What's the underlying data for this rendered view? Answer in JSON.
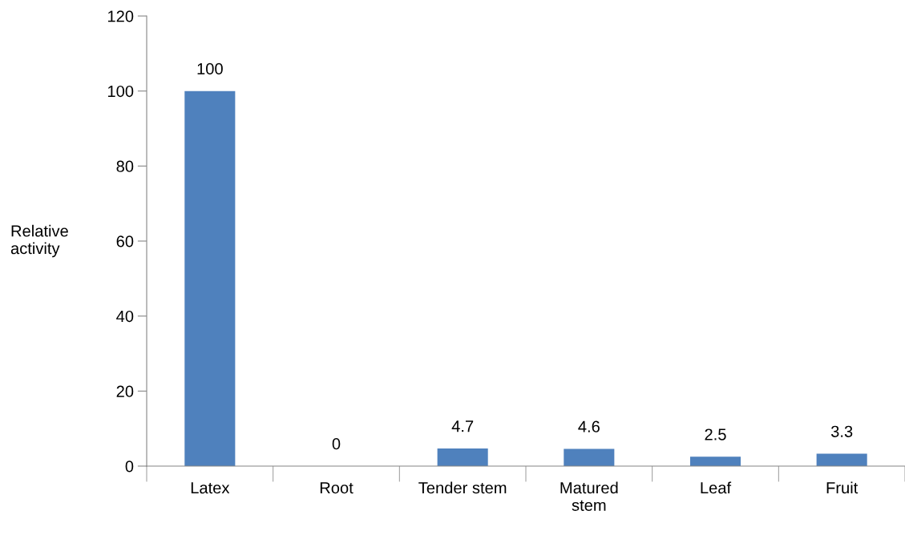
{
  "chart_data": {
    "type": "bar",
    "ylabel": "Relative\nactivity",
    "categories": [
      "Latex",
      "Root",
      "Tender stem",
      "Matured\nstem",
      "Leaf",
      "Fruit"
    ],
    "values": [
      100,
      0,
      4.7,
      4.6,
      2.5,
      3.3
    ],
    "color": "#4f81bd",
    "ylim": [
      0,
      120
    ],
    "yticks": [
      0,
      20,
      40,
      60,
      80,
      100,
      120
    ],
    "data_labels": true,
    "grid": false,
    "legend": false
  }
}
